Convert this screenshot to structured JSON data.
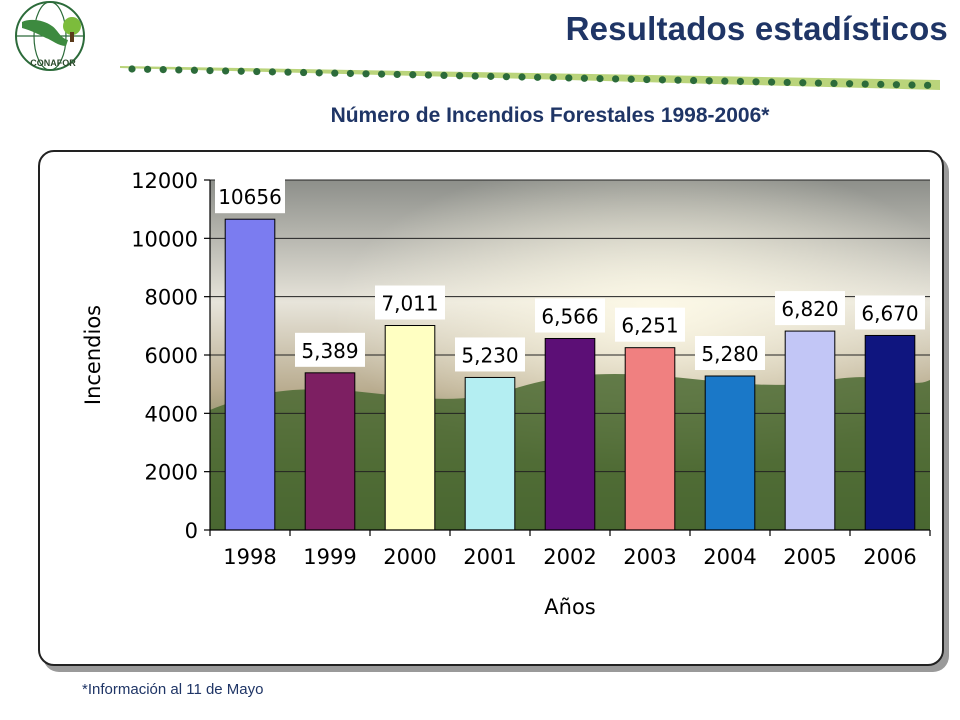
{
  "header": {
    "logo_text": "CONAFOR",
    "title": "Resultados estadísticos"
  },
  "footnote": "*Información al 11 de Mayo",
  "colors": {
    "title": "#1f3566",
    "accent_line": "#a9c95a"
  },
  "chart_data": {
    "type": "bar",
    "title": "Número de Incendios Forestales 1998-2006*",
    "xlabel": "Años",
    "ylabel": "Incendios",
    "categories": [
      "1998",
      "1999",
      "2000",
      "2001",
      "2002",
      "2003",
      "2004",
      "2005",
      "2006"
    ],
    "values": [
      10656,
      5389,
      7011,
      5230,
      6566,
      6251,
      5280,
      6820,
      6670
    ],
    "value_labels": [
      "10656",
      "5,389",
      "7,011",
      "5,230",
      "6,566",
      "6,251",
      "5,280",
      "6,820",
      "6,670"
    ],
    "bar_colors": [
      "#7b7cf0",
      "#7d1f62",
      "#ffffc2",
      "#b4eef2",
      "#5c0f76",
      "#f08080",
      "#1a78c8",
      "#c2c6f6",
      "#0f157f"
    ],
    "ylim": [
      0,
      12000
    ],
    "yticks": [
      0,
      2000,
      4000,
      6000,
      8000,
      10000,
      12000
    ],
    "ytick_labels": [
      "0",
      "2000",
      "4000",
      "6000",
      "8000",
      "10000",
      "12000"
    ],
    "grid": true,
    "legend": "none"
  }
}
